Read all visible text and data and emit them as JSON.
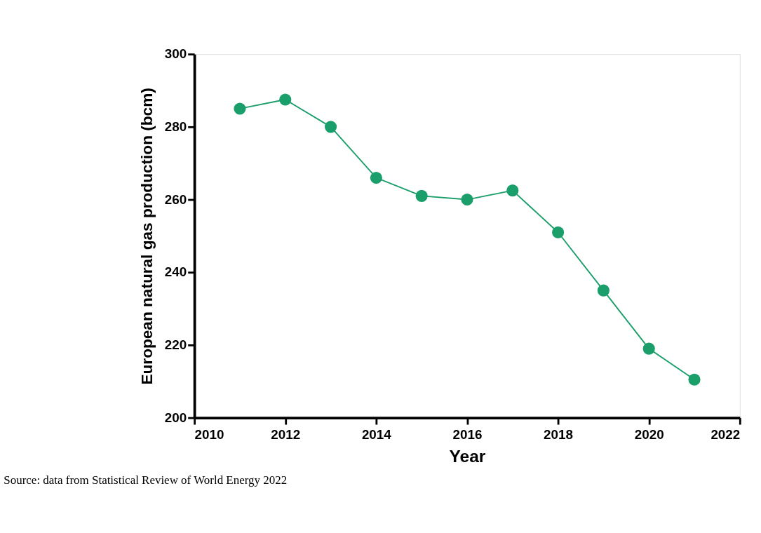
{
  "chart_data": {
    "type": "line",
    "xlabel": "Year",
    "ylabel": "European natural gas production (bcm)",
    "x": [
      2011,
      2012,
      2013,
      2014,
      2015,
      2016,
      2017,
      2018,
      2019,
      2020,
      2021
    ],
    "series": [
      {
        "color": "#1a9e6a",
        "values": [
          285,
          287.5,
          280,
          266,
          261,
          260,
          262.5,
          251,
          235,
          219,
          210.5
        ]
      }
    ],
    "xlim": [
      2010,
      2022
    ],
    "xticks": [
      2010,
      2012,
      2014,
      2016,
      2018,
      2020,
      2022
    ],
    "ylim": [
      200,
      300
    ],
    "yticks": [
      200,
      220,
      240,
      260,
      280,
      300
    ],
    "grid": false,
    "marker": "circle",
    "line_style": "solid",
    "legend": false,
    "annotations": [
      "Source: data from Statistical Review of World Energy 2022"
    ]
  }
}
